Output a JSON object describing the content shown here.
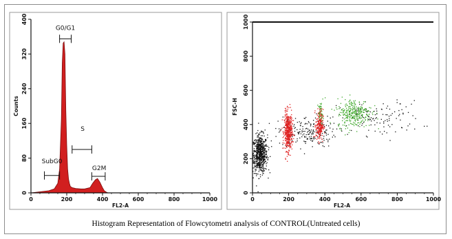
{
  "caption": "Histogram Representation of Flowcytometri analysis of CONTROL(Untreated cells)",
  "colors": {
    "histogram_fill": "#d11f1f",
    "red_cluster": "#e02222",
    "green_cluster": "#3fa92c",
    "black_cluster": "#111111",
    "axis": "#111111"
  },
  "chart_data": [
    {
      "type": "area",
      "chart": "histogram",
      "xlabel": "FL2-A",
      "ylabel": "Counts",
      "xlim": [
        0,
        1000
      ],
      "ylim": [
        0,
        400
      ],
      "x_ticks": [
        "0",
        "200",
        "400",
        "600",
        "800",
        "1000"
      ],
      "y_ticks": [
        "0",
        "80",
        "160",
        "240",
        "320",
        "400"
      ],
      "x": [
        0,
        60,
        100,
        130,
        150,
        160,
        170,
        175,
        180,
        185,
        190,
        195,
        200,
        205,
        210,
        215,
        220,
        230,
        250,
        280,
        300,
        330,
        345,
        360,
        372,
        385,
        400,
        410,
        420,
        430
      ],
      "values": [
        0,
        3,
        5,
        9,
        22,
        55,
        170,
        300,
        345,
        348,
        320,
        190,
        110,
        55,
        32,
        22,
        15,
        12,
        10,
        9,
        9,
        12,
        22,
        30,
        33,
        25,
        12,
        5,
        2,
        0
      ],
      "gates": [
        {
          "label": "SubG0",
          "x": [
            75,
            160
          ],
          "y": 40
        },
        {
          "label": "G0/G1",
          "x": [
            160,
            225
          ],
          "y": 355
        },
        {
          "label": "S",
          "x": [
            230,
            340
          ],
          "y": 100
        },
        {
          "label": "G2M",
          "x": [
            340,
            415
          ],
          "y": 38
        }
      ]
    },
    {
      "type": "scatter",
      "chart": "dot plot",
      "xlabel": "FL2-A",
      "ylabel": "FSC-H",
      "xlim": [
        0,
        1000
      ],
      "ylim": [
        0,
        1000
      ],
      "x_ticks": [
        "0",
        "200",
        "400",
        "600",
        "800",
        "1000"
      ],
      "y_ticks": [
        "0",
        "200",
        "400",
        "600",
        "800",
        "1000"
      ],
      "saturation_line_y": 1000,
      "clusters": [
        {
          "color": "black",
          "center": [
            40,
            230
          ],
          "spread": [
            40,
            110
          ],
          "count": 650
        },
        {
          "color": "black",
          "center": [
            300,
            360
          ],
          "spread": [
            160,
            90
          ],
          "count": 200
        },
        {
          "color": "black",
          "center": [
            700,
            440
          ],
          "spread": [
            230,
            100
          ],
          "count": 120
        },
        {
          "color": "red",
          "center": [
            195,
            360
          ],
          "spread": [
            22,
            110
          ],
          "count": 480
        },
        {
          "color": "red",
          "center": [
            368,
            400
          ],
          "spread": [
            20,
            90
          ],
          "count": 230
        },
        {
          "color": "green",
          "center": [
            560,
            470
          ],
          "spread": [
            95,
            85
          ],
          "count": 300
        },
        {
          "color": "green",
          "center": [
            375,
            470
          ],
          "spread": [
            14,
            60
          ],
          "count": 40
        }
      ]
    }
  ]
}
